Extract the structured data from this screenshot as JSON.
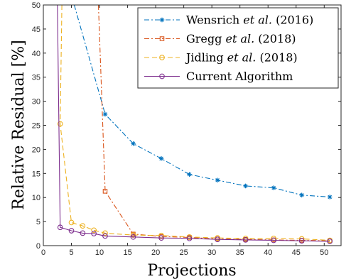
{
  "chart_data": {
    "type": "line",
    "xlabel": "Projections",
    "ylabel": "Relative Residual [%]",
    "xlim": [
      0,
      53
    ],
    "ylim": [
      0,
      50
    ],
    "xticks": [
      0,
      5,
      10,
      15,
      20,
      25,
      30,
      35,
      40,
      45,
      50
    ],
    "yticks": [
      0,
      5,
      10,
      15,
      20,
      25,
      30,
      35,
      40,
      45,
      50
    ],
    "grid": false,
    "legend_position": "top-right",
    "series": [
      {
        "name": "Wensrich et al. (2016)",
        "legend": {
          "pre": "Wensrich ",
          "it": "et al.",
          "post": " (2016)"
        },
        "color": "#0072bd",
        "line_style": "dash-dot",
        "marker": "asterisk",
        "x": [
          5.5,
          11,
          16,
          21,
          26,
          31,
          36,
          41,
          46,
          51
        ],
        "y": [
          50,
          27.3,
          21.2,
          18.1,
          14.8,
          13.6,
          12.4,
          12.0,
          10.5,
          10.1
        ]
      },
      {
        "name": "Gregg et al. (2018)",
        "legend": {
          "pre": "Gregg ",
          "it": "et al.",
          "post": " (2018)"
        },
        "color": "#d95319",
        "line_style": "dash-dot",
        "marker": "square",
        "x": [
          9.8,
          11,
          16,
          21,
          26,
          31,
          36,
          41,
          46,
          51
        ],
        "y": [
          50,
          11.3,
          2.4,
          1.9,
          1.7,
          1.4,
          1.3,
          1.2,
          1.1,
          1.0
        ]
      },
      {
        "name": "Jidling et al. (2018)",
        "legend": {
          "pre": "Jidling ",
          "it": "et al.",
          "post": " (2018)"
        },
        "color": "#edb120",
        "line_style": "dash",
        "marker": "circle",
        "x": [
          3.3,
          3,
          5,
          7,
          9,
          11,
          16,
          21,
          26,
          31,
          36,
          41,
          46,
          51
        ],
        "y": [
          50,
          25.3,
          4.8,
          4.1,
          3.2,
          2.6,
          2.2,
          2.1,
          1.8,
          1.6,
          1.5,
          1.5,
          1.4,
          1.1
        ]
      },
      {
        "name": "Current Algorithm",
        "legend": {
          "pre": "Current Algorithm",
          "it": "",
          "post": ""
        },
        "color": "#7e2f8e",
        "line_style": "solid",
        "marker": "circle",
        "x": [
          2.5,
          3,
          5,
          7,
          9,
          11,
          16,
          21,
          26,
          31,
          36,
          41,
          46,
          51
        ],
        "y": [
          50,
          3.8,
          3.1,
          2.6,
          2.5,
          2.0,
          1.8,
          1.6,
          1.5,
          1.3,
          1.2,
          1.1,
          1.0,
          0.9
        ]
      }
    ]
  }
}
